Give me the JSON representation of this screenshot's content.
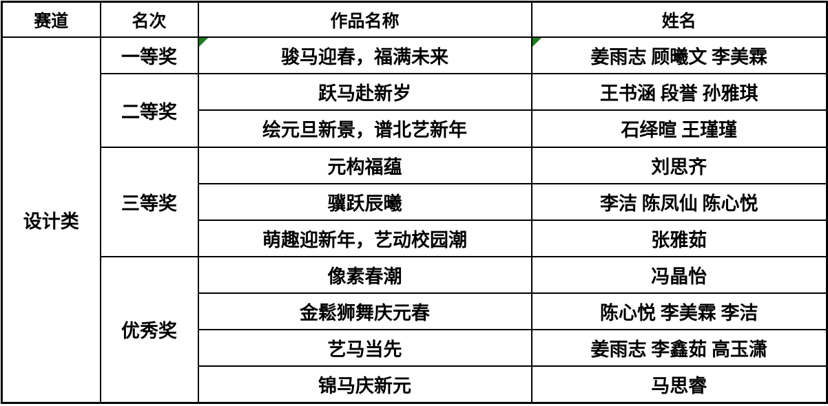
{
  "table": {
    "headers": {
      "track": "赛道",
      "rank": "名次",
      "work": "作品名称",
      "names": "姓名"
    },
    "track_label": "设计类",
    "groups": [
      {
        "rank": "一等奖",
        "entries": [
          {
            "work": "骏马迎春，福满未来",
            "names": "姜雨志 顾曦文 李美霖",
            "has_flag": true
          }
        ]
      },
      {
        "rank": "二等奖",
        "entries": [
          {
            "work": "跃马赴新岁",
            "names": "王书涵 段誉 孙雅琪"
          },
          {
            "work": "绘元旦新景，谱北艺新年",
            "names": "石绎暄 王瑾瑾"
          }
        ]
      },
      {
        "rank": "三等奖",
        "entries": [
          {
            "work": "元构福蕴",
            "names": "刘思齐"
          },
          {
            "work": "骥跃辰曦",
            "names": "李洁 陈凤仙 陈心悦"
          },
          {
            "work": "萌趣迎新年，艺动校园潮",
            "names": "张雅茹"
          }
        ]
      },
      {
        "rank": "优秀奖",
        "entries": [
          {
            "work": "像素春潮",
            "names": "冯晶怡"
          },
          {
            "work": "金鬆狮舞庆元春",
            "names": "陈心悦 李美霖 李洁"
          },
          {
            "work": "艺马当先",
            "names": "姜雨志 李鑫茹 高玉潇"
          },
          {
            "work": "锦马庆新元",
            "names": "马思睿"
          }
        ]
      }
    ],
    "colors": {
      "border": "#000000",
      "text": "#000000",
      "background": "#FFFFFF",
      "flag_green": "#1E7E1E"
    }
  }
}
